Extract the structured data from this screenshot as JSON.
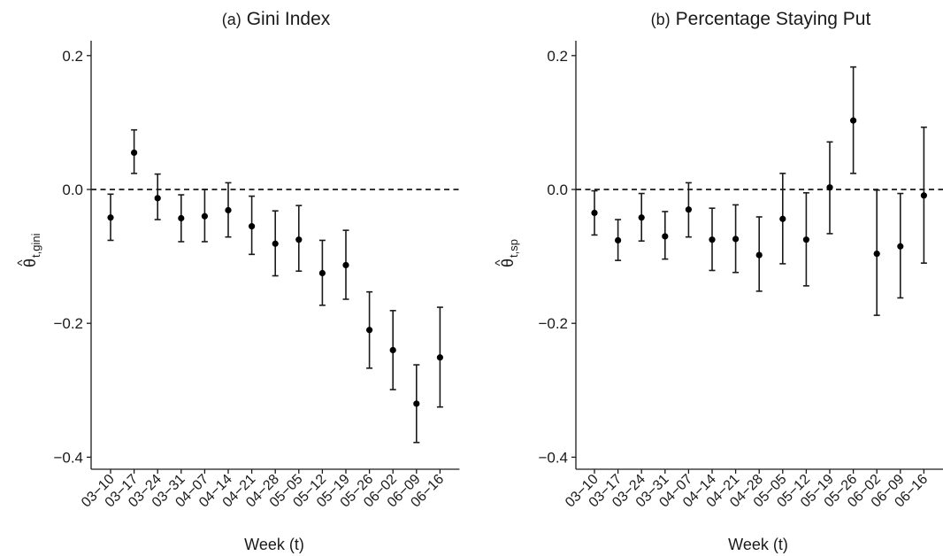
{
  "chart_data": [
    {
      "type": "scatter",
      "subtype": "point-with-error-bars",
      "title_prefix": "(a)",
      "title": "Gini Index",
      "xlabel": "Week (t)",
      "ylabel": "θ",
      "ylabel_hat": "^",
      "ylabel_sub": "t,gini",
      "ylim": [
        -0.42,
        0.22
      ],
      "yticks": [
        0.2,
        0.0,
        -0.2,
        -0.4
      ],
      "ytick_labels": [
        "0.2",
        "0.0",
        "−0.2",
        "−0.4"
      ],
      "reference_line": 0,
      "categories": [
        "03−10",
        "03−17",
        "03−24",
        "03−31",
        "04−07",
        "04−14",
        "04−21",
        "04−28",
        "05−05",
        "05−12",
        "05−19",
        "05−26",
        "06−02",
        "06−09",
        "06−16"
      ],
      "values": [
        -0.042,
        0.055,
        -0.013,
        -0.043,
        -0.04,
        -0.031,
        -0.055,
        -0.081,
        -0.075,
        -0.125,
        -0.113,
        -0.21,
        -0.24,
        -0.32,
        -0.251
      ],
      "lower": [
        -0.076,
        0.024,
        -0.045,
        -0.078,
        -0.078,
        -0.071,
        -0.097,
        -0.129,
        -0.122,
        -0.173,
        -0.164,
        -0.267,
        -0.299,
        -0.378,
        -0.325
      ],
      "upper": [
        -0.007,
        0.089,
        0.023,
        -0.008,
        -0.0,
        0.01,
        -0.01,
        -0.032,
        -0.024,
        -0.076,
        -0.061,
        -0.153,
        -0.181,
        -0.262,
        -0.176
      ]
    },
    {
      "type": "scatter",
      "subtype": "point-with-error-bars",
      "title_prefix": "(b)",
      "title": "Percentage Staying Put",
      "xlabel": "Week (t)",
      "ylabel": "θ",
      "ylabel_hat": "^",
      "ylabel_sub": "t,sp",
      "ylim": [
        -0.42,
        0.22
      ],
      "yticks": [
        0.2,
        0.0,
        -0.2,
        -0.4
      ],
      "ytick_labels": [
        "0.2",
        "0.0",
        "−0.2",
        "−0.4"
      ],
      "reference_line": 0,
      "categories": [
        "03−10",
        "03−17",
        "03−24",
        "03−31",
        "04−07",
        "04−14",
        "04−21",
        "04−28",
        "05−05",
        "05−12",
        "05−19",
        "05−26",
        "06−02",
        "06−09",
        "06−16"
      ],
      "values": [
        -0.035,
        -0.076,
        -0.042,
        -0.07,
        -0.03,
        -0.075,
        -0.074,
        -0.098,
        -0.044,
        -0.075,
        0.003,
        0.103,
        -0.096,
        -0.085,
        -0.009
      ],
      "lower": [
        -0.068,
        -0.106,
        -0.077,
        -0.104,
        -0.071,
        -0.121,
        -0.124,
        -0.152,
        -0.111,
        -0.144,
        -0.066,
        0.024,
        -0.188,
        -0.162,
        -0.11
      ],
      "upper": [
        -0.002,
        -0.045,
        -0.006,
        -0.033,
        0.01,
        -0.028,
        -0.023,
        -0.041,
        0.024,
        -0.005,
        0.071,
        0.183,
        -0.001,
        -0.006,
        0.093
      ]
    }
  ]
}
